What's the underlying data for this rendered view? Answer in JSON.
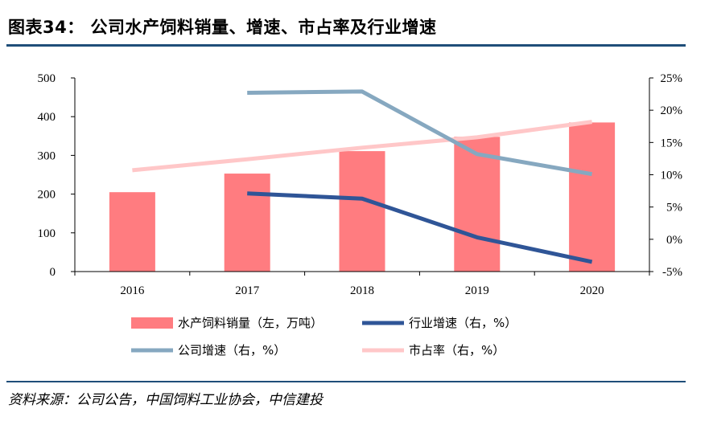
{
  "header": {
    "title": "图表34：  公司水产饲料销量、增速、市占率及行业增速"
  },
  "footer": {
    "source": "资料来源：公司公告，中国饲料工业协会，中信建投"
  },
  "colors": {
    "bar": "#ff7c80",
    "industry_growth": "#2f5597",
    "company_growth": "#86a8c0",
    "market_share": "#ffc7c8",
    "rule": "#1f4e79"
  },
  "chart_data": {
    "type": "bar+line",
    "categories": [
      "2016",
      "2017",
      "2018",
      "2019",
      "2020"
    ],
    "left_axis": {
      "ticks": [
        "0",
        "100",
        "200",
        "300",
        "400",
        "500"
      ],
      "ylim": [
        0,
        500
      ]
    },
    "right_axis": {
      "ticks": [
        "-5%",
        "0%",
        "5%",
        "10%",
        "15%",
        "20%",
        "25%"
      ],
      "ylim": [
        -5,
        25
      ]
    },
    "series": [
      {
        "name": "水产饲料销量（左，万吨）",
        "kind": "bar",
        "axis": "left",
        "values": [
          205,
          253,
          311,
          348,
          385
        ]
      },
      {
        "name": "行业增速（右，%）",
        "kind": "line",
        "axis": "right",
        "values": [
          null,
          7.1,
          6.3,
          0.3,
          -3.5
        ]
      },
      {
        "name": "公司增速（右，%）",
        "kind": "line",
        "axis": "right",
        "values": [
          null,
          22.7,
          22.9,
          13.2,
          10.1
        ]
      },
      {
        "name": "市占率（右，%）",
        "kind": "line",
        "axis": "right",
        "values": [
          10.7,
          12.4,
          14.2,
          15.8,
          18.2
        ]
      }
    ],
    "legend_position": "bottom"
  }
}
